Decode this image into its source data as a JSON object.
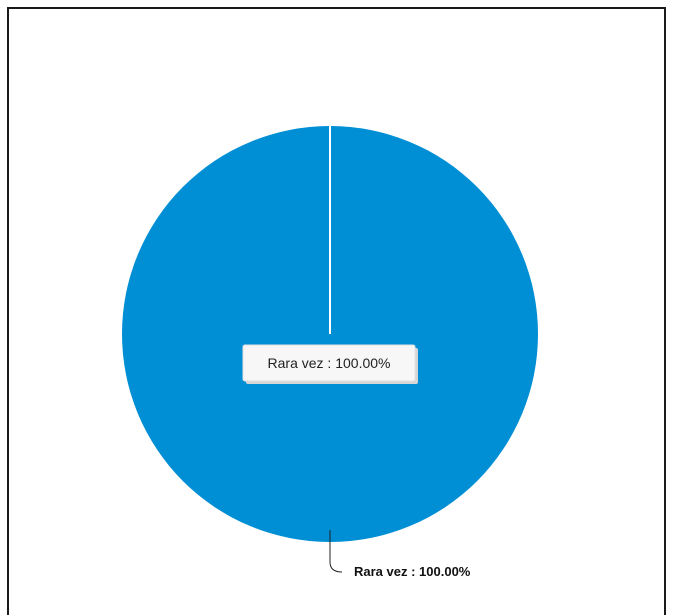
{
  "chart_data": {
    "type": "pie",
    "categories": [
      "Rara vez"
    ],
    "values": [
      100.0
    ],
    "colors": [
      "#008fd5"
    ],
    "labels": [
      "Rara vez : 100.00%"
    ],
    "tooltip": "Rara vez : 100.00%",
    "legend": "none"
  }
}
